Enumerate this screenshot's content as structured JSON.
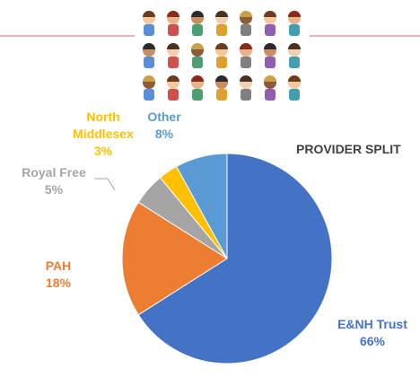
{
  "chart_data": {
    "type": "pie",
    "title": "PROVIDER SPLIT",
    "categories": [
      "E&NH Trust",
      "PAH",
      "Royal Free",
      "North Middlesex",
      "Other"
    ],
    "values": [
      66,
      18,
      5,
      3,
      8
    ],
    "value_labels": [
      "66%",
      "18%",
      "5%",
      "3%",
      "8%"
    ],
    "colors": [
      "#4472c4",
      "#ed7d31",
      "#a5a5a5",
      "#ffc000",
      "#5b9bd5"
    ]
  }
}
